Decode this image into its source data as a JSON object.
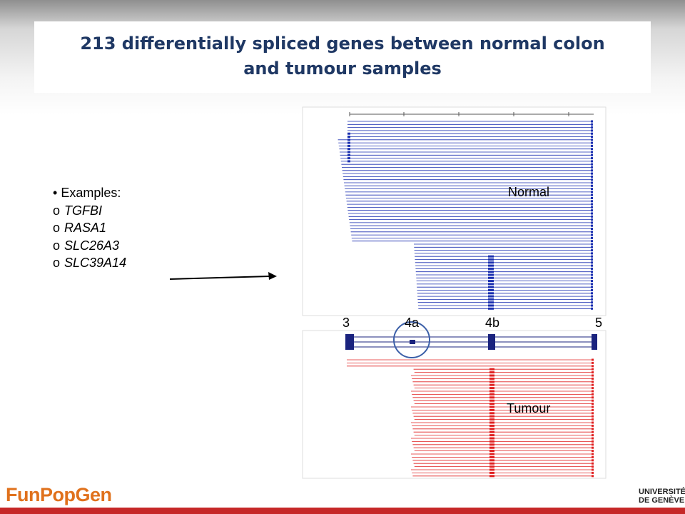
{
  "slide": {
    "title_line1": "213 differentially spliced genes between normal colon",
    "title_line2": "and tumour samples"
  },
  "bullets": {
    "header": "Examples:",
    "header_marker": "•",
    "item_marker": "o",
    "items": [
      "TGFBI",
      "RASA1",
      "SLC26A3",
      "SLC39A14"
    ]
  },
  "figure": {
    "normal_label": "Normal",
    "tumour_label": "Tumour",
    "exon_labels": [
      "3",
      "4a",
      "4b",
      "5"
    ],
    "normal_color": "#1a2fb0",
    "tumour_color": "#e02020",
    "exon_color": "#1a237e",
    "highlight_color": "#3b5fa8"
  },
  "logos": {
    "left_part1": "Fun",
    "left_part2": "Pop",
    "left_part3": "Gen",
    "right_line1": "UNIVERSITÉ",
    "right_line2": "DE GENÈVE"
  }
}
